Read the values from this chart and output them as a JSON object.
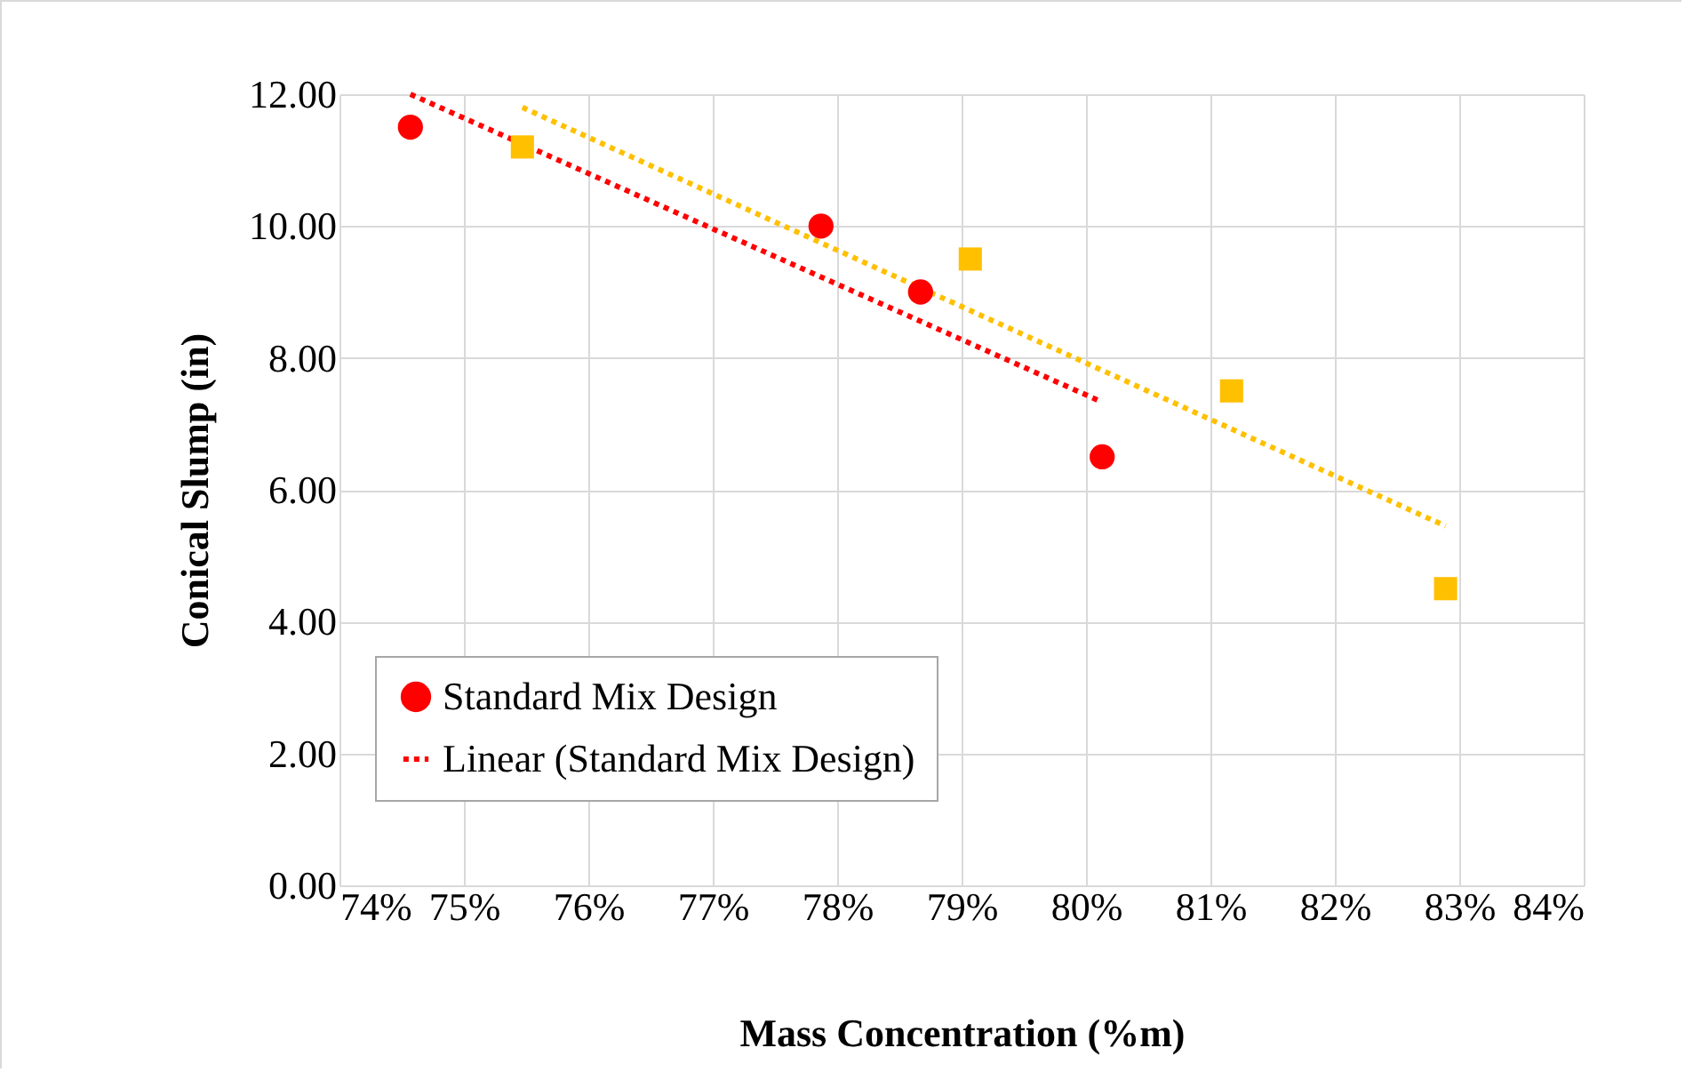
{
  "chart_data": {
    "type": "scatter",
    "xlabel": "Mass Concentration (%m)",
    "ylabel": "Conical Slump  (in)",
    "xlim": [
      74,
      84
    ],
    "xticks": [
      {
        "value": 74,
        "label": "74%"
      },
      {
        "value": 75,
        "label": "75%"
      },
      {
        "value": 76,
        "label": "76%"
      },
      {
        "value": 77,
        "label": "77%"
      },
      {
        "value": 78,
        "label": "78%"
      },
      {
        "value": 79,
        "label": "79%"
      },
      {
        "value": 80,
        "label": "80%"
      },
      {
        "value": 81,
        "label": "81%"
      },
      {
        "value": 82,
        "label": "82%"
      },
      {
        "value": 83,
        "label": "83%"
      },
      {
        "value": 84,
        "label": "84%"
      }
    ],
    "ylim": [
      0,
      12
    ],
    "yticks": [
      {
        "value": 0,
        "label": "0.00"
      },
      {
        "value": 2,
        "label": "2.00"
      },
      {
        "value": 4,
        "label": "4.00"
      },
      {
        "value": 6,
        "label": "6.00"
      },
      {
        "value": 8,
        "label": "8.00"
      },
      {
        "value": 10,
        "label": "10.00"
      },
      {
        "value": 12,
        "label": "12.00"
      }
    ],
    "grid": true,
    "legend": "bottom left",
    "series": [
      {
        "name": "Standard Mix Design",
        "marker": "circle",
        "color": "#ff0000",
        "x": [
          74.57,
          77.87,
          78.67,
          80.13
        ],
        "values": [
          11.5,
          10.0,
          9.0,
          6.5
        ]
      },
      {
        "marker": "square",
        "color": "#ffc000",
        "x": [
          75.47,
          79.07,
          81.17,
          82.89
        ],
        "values": [
          11.2,
          9.5,
          7.5,
          4.5
        ]
      },
      {
        "name": "Linear (Standard Mix Design)",
        "type": "line",
        "line_style": "dotted",
        "color": "#ff0000",
        "x": [
          74.57,
          80.13
        ],
        "values": [
          12.0,
          7.33
        ]
      },
      {
        "type": "line",
        "line_style": "dotted",
        "color": "#ffc000",
        "x": [
          75.47,
          82.89
        ],
        "values": [
          11.8,
          5.45
        ]
      }
    ]
  }
}
